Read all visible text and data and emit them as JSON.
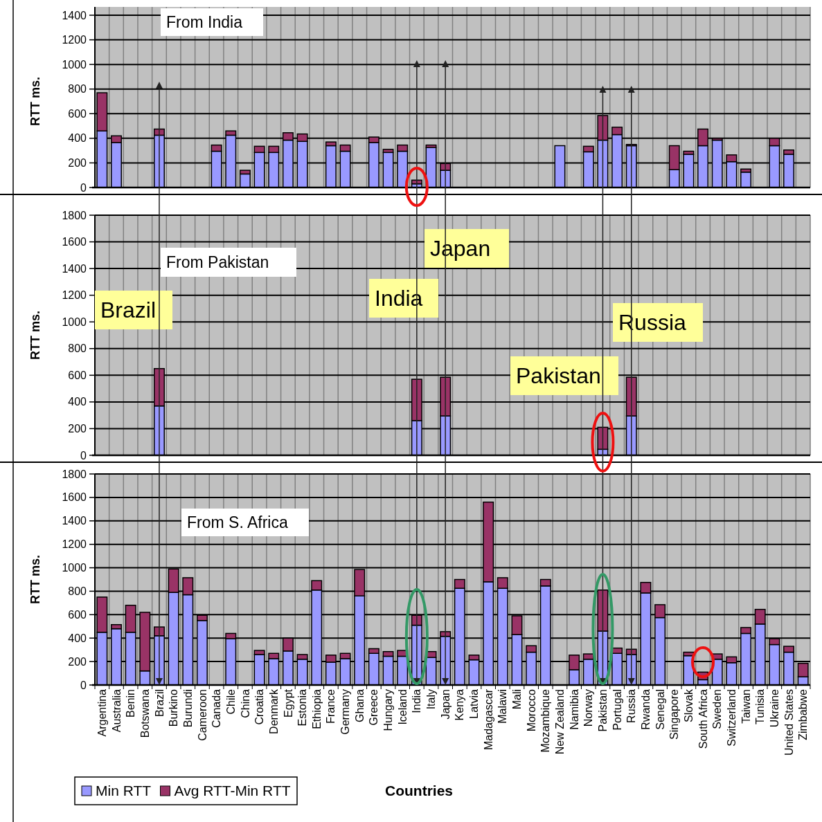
{
  "chart_data": [
    {
      "type": "bar",
      "stacked": true,
      "annotations": [
        "From India"
      ],
      "ylabel": "RTT ms.",
      "ylim": [
        0,
        1400
      ],
      "yticks": [
        0,
        200,
        400,
        600,
        800,
        1000,
        1200,
        1400
      ],
      "grid": true,
      "tick_labels": "y",
      "categories": [
        null,
        null,
        null,
        null,
        null,
        null,
        null,
        null,
        null,
        null,
        null,
        null,
        null,
        null,
        null,
        null,
        null,
        null,
        null,
        null,
        null,
        null,
        null,
        null,
        null,
        null,
        null,
        null,
        null,
        null,
        null,
        null,
        null,
        null,
        null,
        null,
        null,
        null,
        null,
        null,
        null,
        null,
        null,
        null,
        null,
        null,
        null,
        null,
        null,
        null
      ],
      "series": [
        {
          "color": "#9999ff",
          "values": [
            460,
            365,
            null,
            null,
            425,
            null,
            null,
            null,
            295,
            425,
            110,
            285,
            285,
            385,
            375,
            null,
            340,
            295,
            null,
            365,
            285,
            295,
            30,
            325,
            140,
            null,
            null,
            null,
            null,
            null,
            null,
            null,
            340,
            null,
            290,
            385,
            430,
            340,
            null,
            null,
            145,
            270,
            340,
            385,
            210,
            125,
            null,
            340,
            270,
            null
          ]
        },
        {
          "color": "#993366",
          "values": [
            310,
            55,
            null,
            null,
            50,
            null,
            null,
            null,
            50,
            35,
            30,
            50,
            50,
            60,
            60,
            null,
            30,
            50,
            null,
            45,
            25,
            50,
            30,
            20,
            55,
            null,
            null,
            null,
            null,
            null,
            null,
            null,
            null,
            null,
            45,
            200,
            60,
            10,
            null,
            null,
            195,
            25,
            135,
            15,
            55,
            25,
            null,
            60,
            35,
            null
          ]
        }
      ]
    },
    {
      "type": "bar",
      "stacked": true,
      "annotations": [
        "From Pakistan",
        "Brazil",
        "India",
        "Japan",
        "Pakistan",
        "Russia"
      ],
      "ylabel": "RTT ms.",
      "ylim": [
        0,
        1800
      ],
      "yticks": [
        0,
        200,
        400,
        600,
        800,
        1000,
        1200,
        1400,
        1600,
        1800
      ],
      "grid": true,
      "tick_labels": "y",
      "categories": [
        null,
        null,
        null,
        null,
        null,
        null,
        null,
        null,
        null,
        null,
        null,
        null,
        null,
        null,
        null,
        null,
        null,
        null,
        null,
        null,
        null,
        null,
        null,
        null,
        null,
        null,
        null,
        null,
        null,
        null,
        null,
        null,
        null,
        null,
        null,
        null,
        null,
        null,
        null,
        null,
        null,
        null,
        null,
        null,
        null,
        null,
        null,
        null,
        null,
        null
      ],
      "series": [
        {
          "color": "#9999ff",
          "values": [
            null,
            null,
            null,
            null,
            370,
            null,
            null,
            null,
            null,
            null,
            null,
            null,
            null,
            null,
            null,
            null,
            null,
            null,
            null,
            null,
            null,
            null,
            260,
            null,
            295,
            null,
            null,
            null,
            null,
            null,
            null,
            null,
            null,
            null,
            null,
            45,
            null,
            295,
            null,
            null,
            null,
            null,
            null,
            null,
            null,
            null,
            null,
            null,
            null,
            null
          ]
        },
        {
          "color": "#993366",
          "values": [
            null,
            null,
            null,
            null,
            280,
            null,
            null,
            null,
            null,
            null,
            null,
            null,
            null,
            null,
            null,
            null,
            null,
            null,
            null,
            null,
            null,
            null,
            310,
            null,
            290,
            null,
            null,
            null,
            null,
            null,
            null,
            null,
            null,
            null,
            null,
            165,
            null,
            290,
            null,
            null,
            null,
            null,
            null,
            null,
            null,
            null,
            null,
            null,
            null,
            null
          ]
        }
      ]
    },
    {
      "type": "bar",
      "stacked": true,
      "annotations": [
        "From S. Africa"
      ],
      "ylabel": "RTT ms.",
      "xlabel": "Countries",
      "ylim": [
        0,
        1800
      ],
      "yticks": [
        0,
        200,
        400,
        600,
        800,
        1000,
        1200,
        1400,
        1600,
        1800
      ],
      "grid": true,
      "legend": "bottom left",
      "categories": [
        "Argentina",
        "Australia",
        "Benin",
        "Botswana",
        "Brazil",
        "Burkino",
        "Burundi",
        "Cameroon",
        "Canada",
        "Chile",
        "China",
        "Croatia",
        "Denmark",
        "Egypt",
        "Estonia",
        "Ethiopia",
        "France",
        "Germany",
        "Ghana",
        "Greece",
        "Hungary",
        "Iceland",
        "India",
        "Italy",
        "Japan",
        "Kenya",
        "Latvia",
        "Madagascar",
        "Malawi",
        "Mali",
        "Morocco",
        "Mozambique",
        "New Zealand",
        "Namibia",
        "Norway",
        "Pakistan",
        "Portugal",
        "Russia",
        "Rwanda",
        "Senegal",
        "Singapore",
        "Slovak",
        "South Africa",
        "Sweden",
        "Switzerland",
        "Taiwan",
        "Tunisia",
        "Ukraine",
        "United States",
        "Zimbabwe"
      ],
      "series": [
        {
          "name": "Min RTT",
          "color": "#9999ff",
          "values": [
            450,
            480,
            450,
            120,
            420,
            790,
            770,
            550,
            null,
            395,
            null,
            260,
            225,
            290,
            220,
            810,
            195,
            225,
            760,
            270,
            245,
            245,
            510,
            235,
            415,
            825,
            215,
            880,
            825,
            430,
            280,
            845,
            null,
            130,
            220,
            460,
            270,
            260,
            785,
            575,
            null,
            250,
            45,
            220,
            190,
            440,
            520,
            345,
            280,
            70
          ]
        },
        {
          "name": "Avg RTT-Min RTT",
          "color": "#993366",
          "values": [
            300,
            35,
            230,
            500,
            75,
            200,
            145,
            45,
            null,
            45,
            null,
            35,
            45,
            110,
            40,
            80,
            60,
            45,
            225,
            40,
            40,
            50,
            85,
            50,
            40,
            75,
            40,
            680,
            90,
            160,
            55,
            55,
            null,
            125,
            45,
            350,
            45,
            45,
            90,
            110,
            null,
            30,
            65,
            45,
            50,
            50,
            125,
            50,
            50,
            115
          ]
        }
      ]
    }
  ]
}
